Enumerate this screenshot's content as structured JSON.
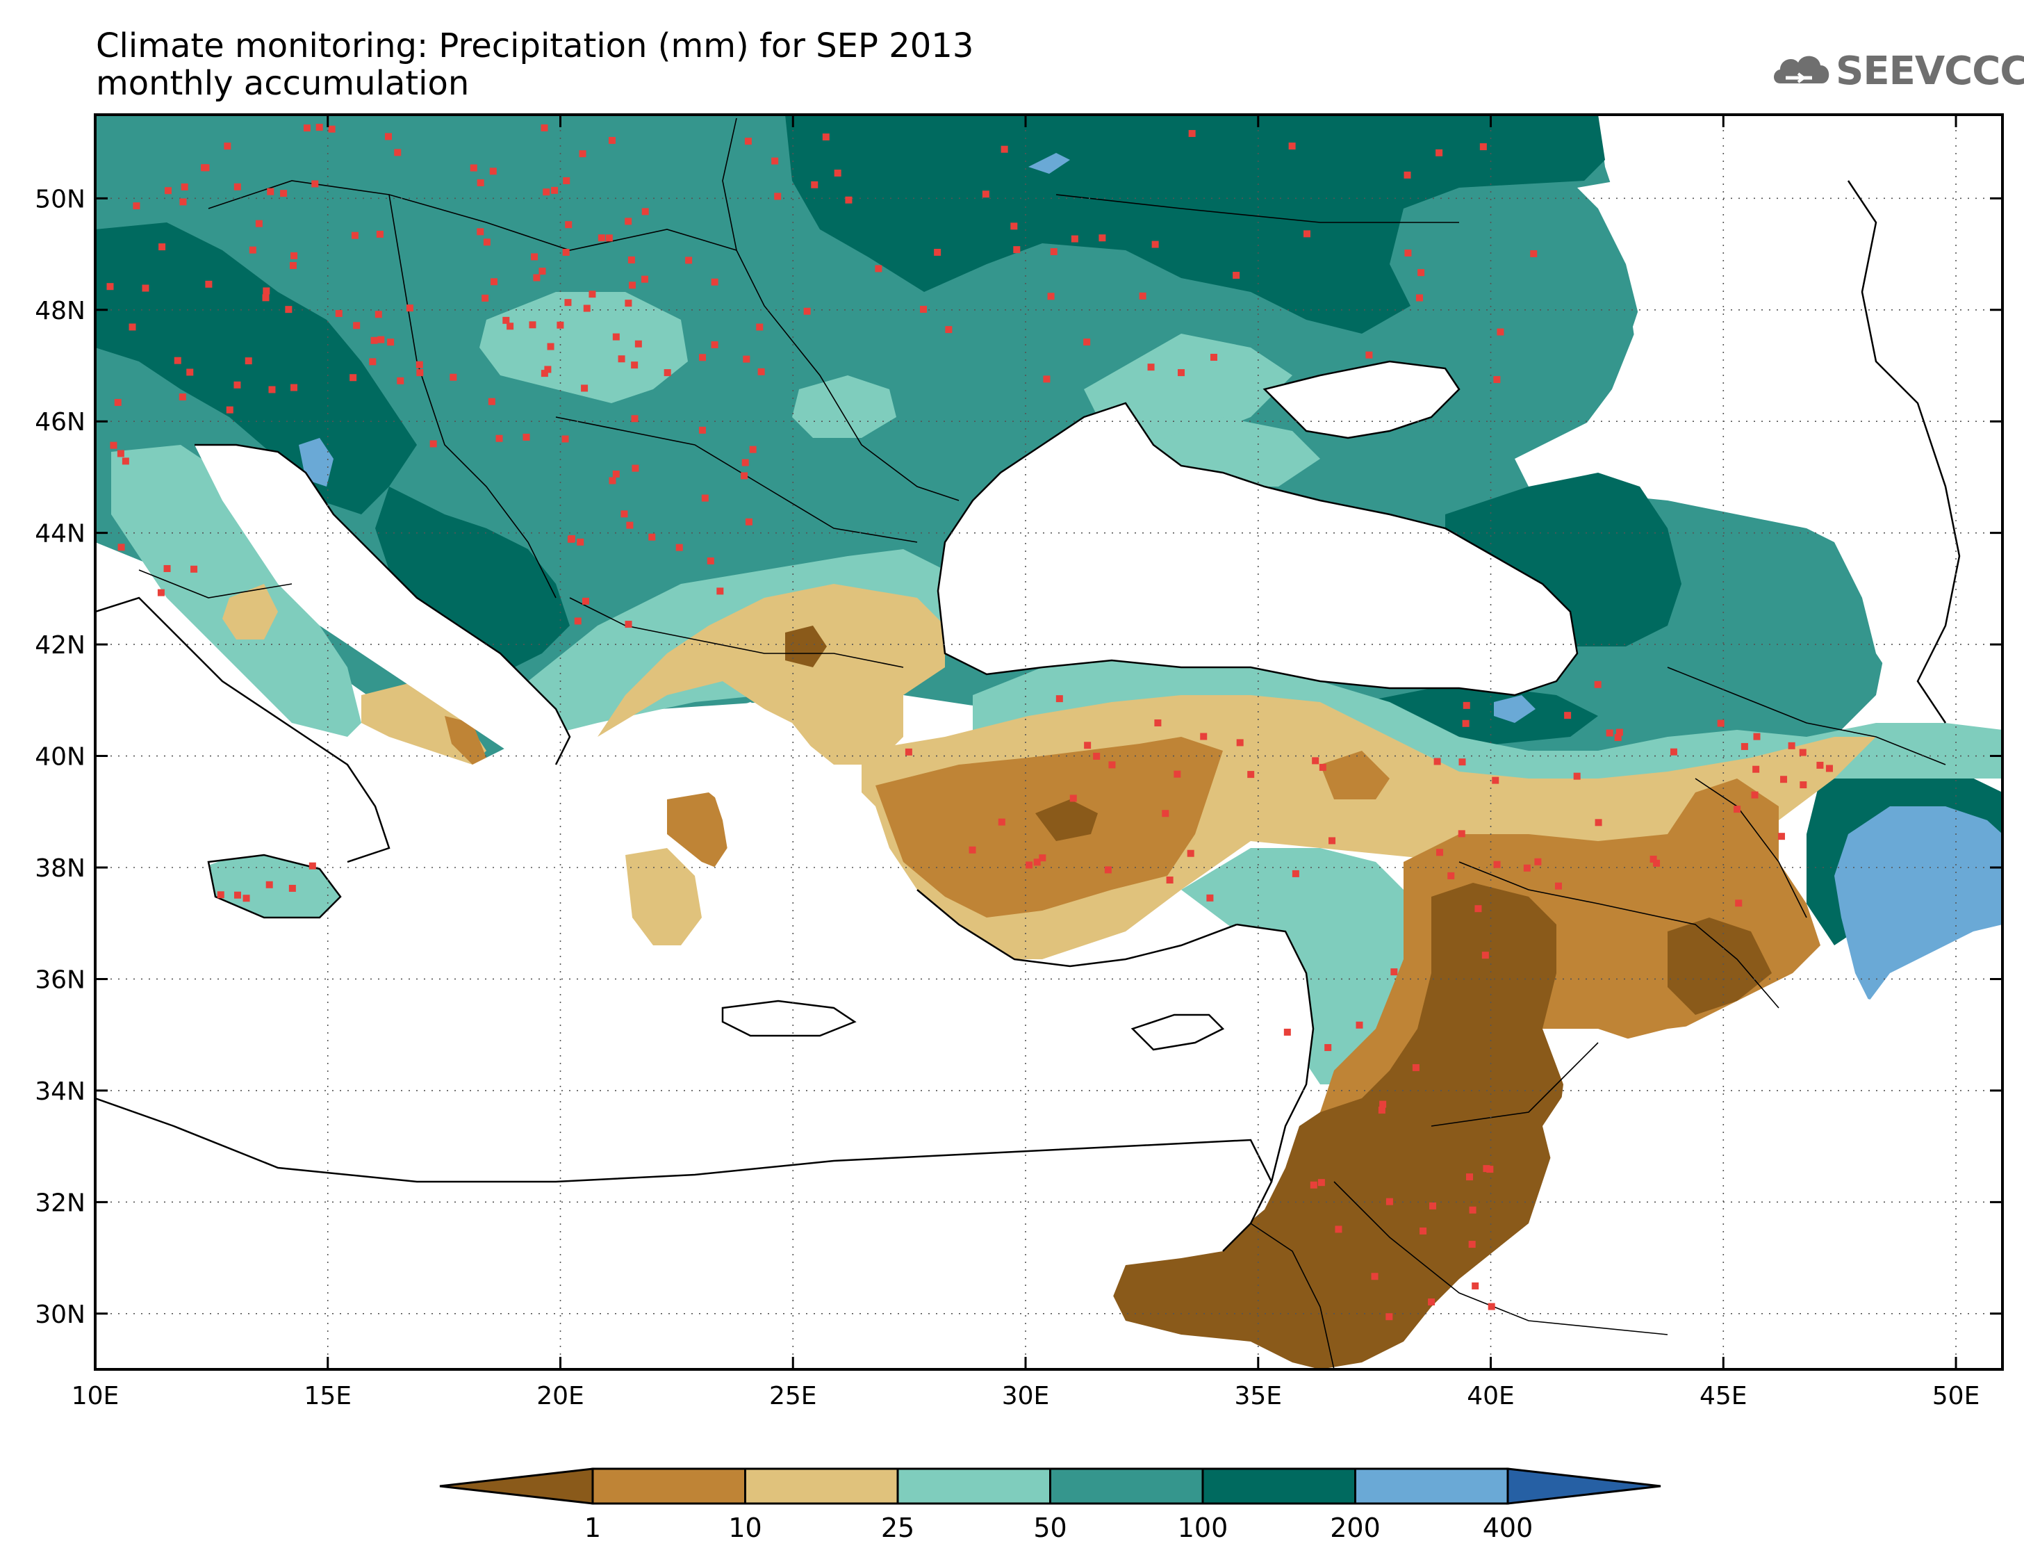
{
  "title": {
    "line1": "Climate monitoring: Precipitation (mm) for SEP 2013",
    "line2": "monthly accumulation"
  },
  "logo": {
    "text": "SEEVCCC",
    "icon": "cloud-icon",
    "color": "#6f6f6f"
  },
  "map": {
    "lon_range": [
      10,
      51
    ],
    "lat_range": [
      29,
      51.5
    ],
    "lon_ticks": [
      {
        "value": 10,
        "label": "10E"
      },
      {
        "value": 15,
        "label": "15E"
      },
      {
        "value": 20,
        "label": "20E"
      },
      {
        "value": 25,
        "label": "25E"
      },
      {
        "value": 30,
        "label": "30E"
      },
      {
        "value": 35,
        "label": "35E"
      },
      {
        "value": 40,
        "label": "40E"
      },
      {
        "value": 45,
        "label": "45E"
      },
      {
        "value": 50,
        "label": "50E"
      }
    ],
    "lat_ticks": [
      {
        "value": 30,
        "label": "30N"
      },
      {
        "value": 32,
        "label": "32N"
      },
      {
        "value": 34,
        "label": "34N"
      },
      {
        "value": 36,
        "label": "36N"
      },
      {
        "value": 38,
        "label": "38N"
      },
      {
        "value": 40,
        "label": "40N"
      },
      {
        "value": 42,
        "label": "42N"
      },
      {
        "value": 44,
        "label": "44N"
      },
      {
        "value": 46,
        "label": "46N"
      },
      {
        "value": 48,
        "label": "48N"
      },
      {
        "value": 50,
        "label": "50N"
      }
    ],
    "grid": "dotted",
    "station_marker_color": "#e8403a"
  },
  "colorbar": {
    "colors": [
      "#8a5a1a",
      "#bf8436",
      "#e0c27c",
      "#7fcdbd",
      "#35968d",
      "#006a5f",
      "#6aa9d6",
      "#2660a4"
    ],
    "labels": [
      "1",
      "10",
      "25",
      "50",
      "100",
      "200",
      "400"
    ]
  }
}
